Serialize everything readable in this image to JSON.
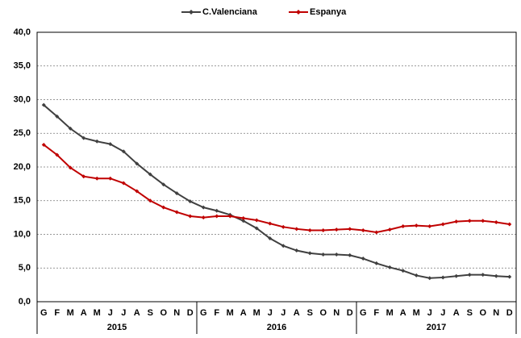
{
  "chart_data": {
    "type": "line",
    "categories": [
      "G",
      "F",
      "M",
      "A",
      "M",
      "J",
      "J",
      "A",
      "S",
      "O",
      "N",
      "D",
      "G",
      "F",
      "M",
      "A",
      "M",
      "J",
      "J",
      "A",
      "S",
      "O",
      "N",
      "D",
      "G",
      "F",
      "M",
      "A",
      "M",
      "J",
      "J",
      "A",
      "S",
      "O",
      "N",
      "D"
    ],
    "x_groups": [
      "2015",
      "2016",
      "2017"
    ],
    "series": [
      {
        "name": "C.Valenciana",
        "color": "#404040",
        "values": [
          29.2,
          27.5,
          25.7,
          24.3,
          23.8,
          23.4,
          22.3,
          20.5,
          18.9,
          17.4,
          16.1,
          14.9,
          14.0,
          13.5,
          12.9,
          12.0,
          10.9,
          9.4,
          8.3,
          7.6,
          7.2,
          7.0,
          7.0,
          6.9,
          6.4,
          5.7,
          5.1,
          4.6,
          3.9,
          3.5,
          3.6,
          3.8,
          4.0,
          4.0,
          3.8,
          3.7
        ]
      },
      {
        "name": "Espanya",
        "color": "#c00000",
        "values": [
          23.3,
          21.8,
          19.9,
          18.6,
          18.3,
          18.3,
          17.6,
          16.4,
          15.0,
          14.0,
          13.3,
          12.7,
          12.5,
          12.7,
          12.7,
          12.4,
          12.1,
          11.6,
          11.1,
          10.8,
          10.6,
          10.6,
          10.7,
          10.8,
          10.6,
          10.3,
          10.7,
          11.2,
          11.3,
          11.2,
          11.5,
          11.9,
          12.0,
          12.0,
          11.8,
          11.5
        ]
      }
    ],
    "ylim": [
      0,
      40
    ],
    "yticks": [
      {
        "value": 0,
        "label": "0,0"
      },
      {
        "value": 5,
        "label": "5,0"
      },
      {
        "value": 10,
        "label": "10,0"
      },
      {
        "value": 15,
        "label": "15,0"
      },
      {
        "value": 20,
        "label": "20,0"
      },
      {
        "value": 25,
        "label": "25,0"
      },
      {
        "value": 30,
        "label": "30,0"
      },
      {
        "value": 35,
        "label": "35,0"
      },
      {
        "value": 40,
        "label": "40,0"
      }
    ],
    "grid": true,
    "legend": "top"
  }
}
